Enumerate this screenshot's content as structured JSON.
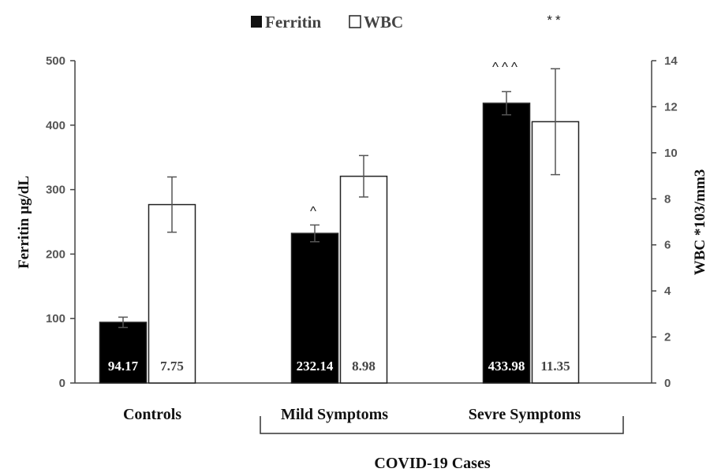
{
  "chart_data": {
    "type": "bar",
    "categories": [
      "Controls",
      "Mild Symptoms",
      "Sevre Symptoms"
    ],
    "group_label": "COVID-19 Cases",
    "ylabel": "Ferritin µg/dL",
    "y2label": "WBC *103/mm3",
    "ylim": [
      0,
      500
    ],
    "y2lim": [
      0,
      14
    ],
    "yticks": [
      0,
      100,
      200,
      300,
      400,
      500
    ],
    "y2ticks": [
      0,
      2,
      4,
      6,
      8,
      10,
      12,
      14
    ],
    "legend_position": "top-center",
    "series": [
      {
        "name": "Ferritin",
        "axis": "left",
        "color": "#000000",
        "values": [
          94.17,
          232.14,
          433.98
        ],
        "labels": [
          "94.17",
          "232.14",
          "433.98"
        ],
        "error": [
          8,
          13,
          18
        ],
        "annotations": [
          "",
          "^",
          "^^^"
        ]
      },
      {
        "name": "WBC",
        "axis": "right",
        "color": "#ffffff",
        "values": [
          7.75,
          8.98,
          11.35
        ],
        "labels": [
          "7.75",
          "8.98",
          "11.35"
        ],
        "error": [
          1.2,
          0.9,
          2.3
        ],
        "annotations": [
          "",
          "",
          "**"
        ]
      }
    ]
  }
}
